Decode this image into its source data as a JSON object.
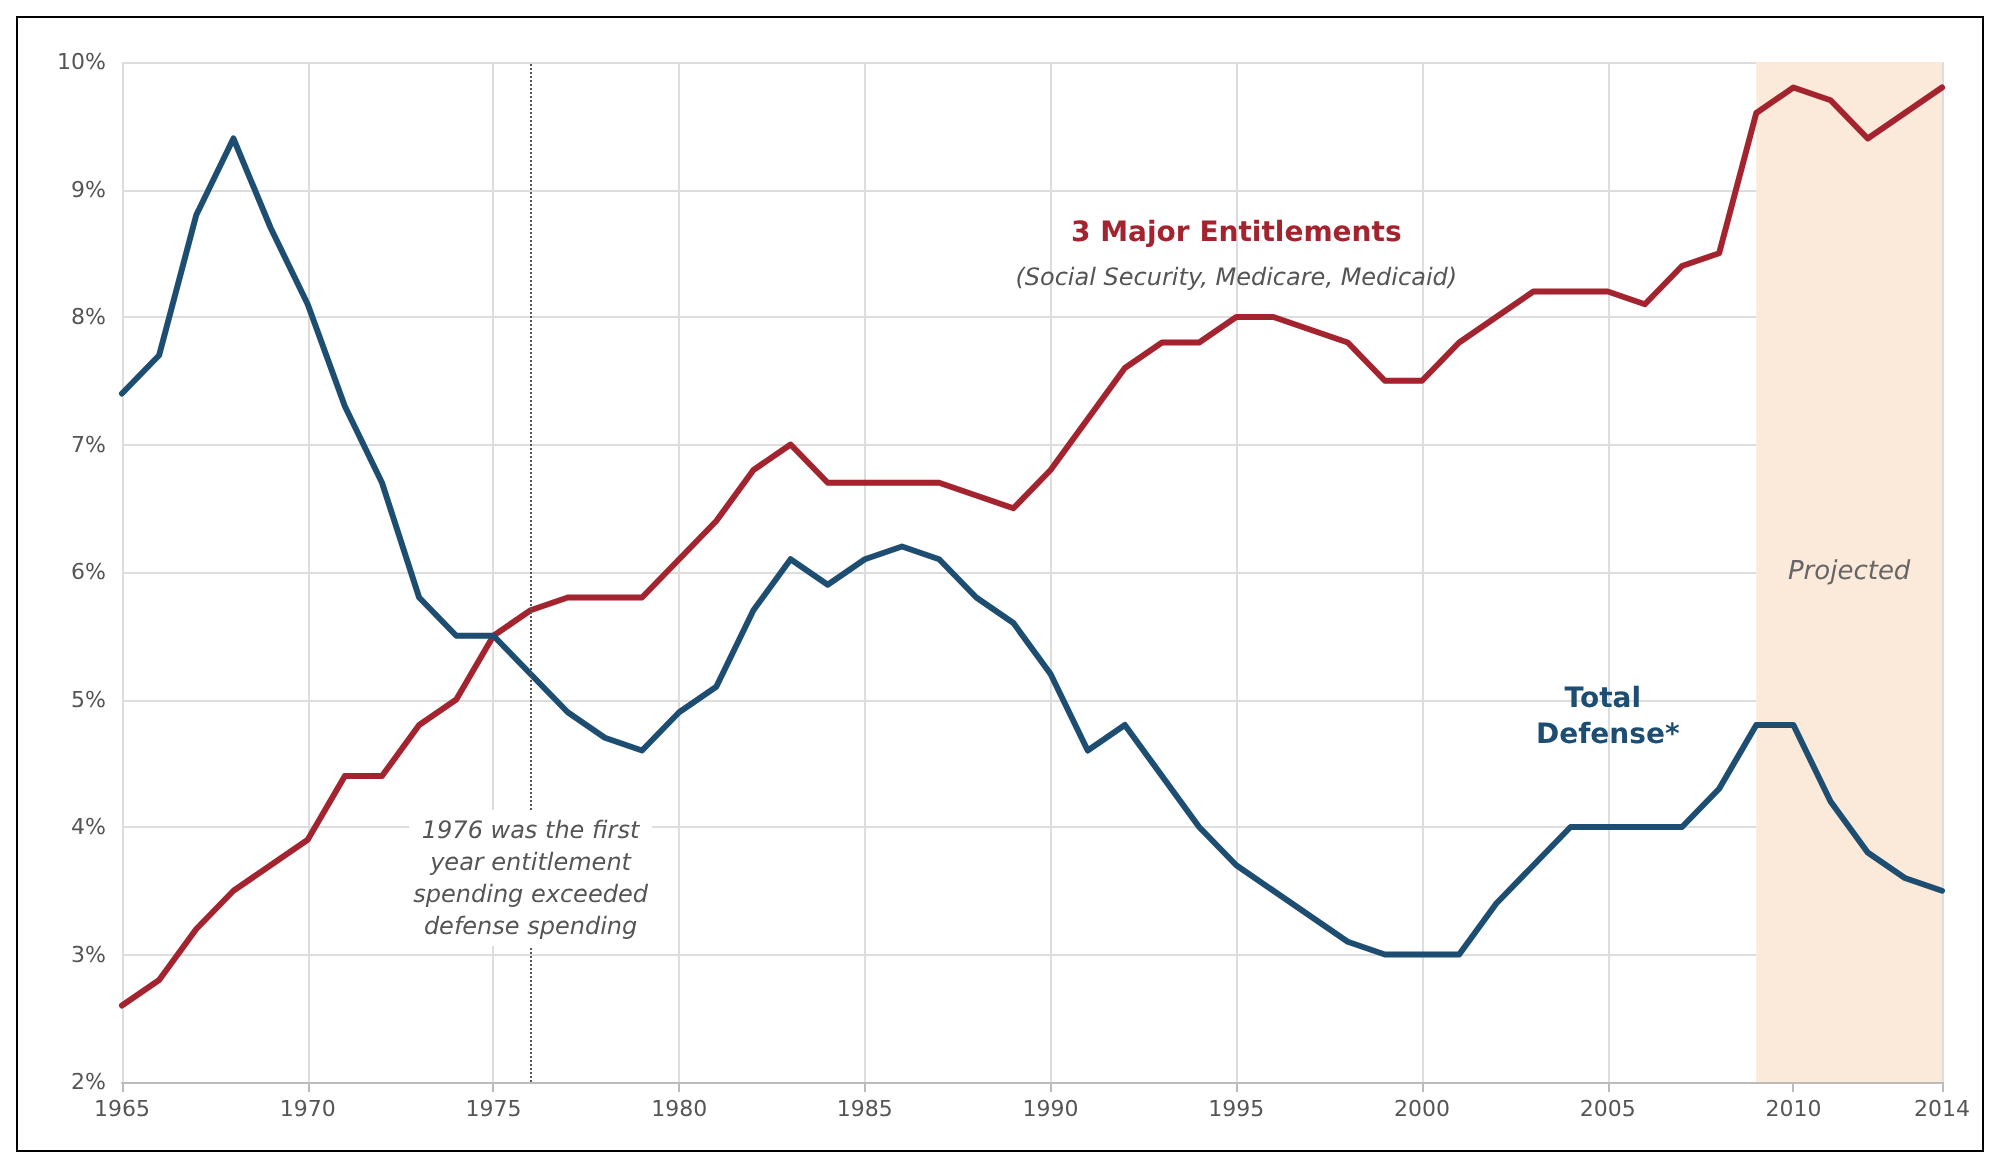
{
  "chart_data": {
    "type": "line",
    "x": [
      1965,
      1966,
      1967,
      1968,
      1969,
      1970,
      1971,
      1972,
      1973,
      1974,
      1975,
      1976,
      1977,
      1978,
      1979,
      1980,
      1981,
      1982,
      1983,
      1984,
      1985,
      1986,
      1987,
      1988,
      1989,
      1990,
      1991,
      1992,
      1993,
      1994,
      1995,
      1996,
      1997,
      1998,
      1999,
      2000,
      2001,
      2002,
      2003,
      2004,
      2005,
      2006,
      2007,
      2008,
      2009,
      2010,
      2011,
      2012,
      2013,
      2014
    ],
    "series": [
      {
        "name": "3 Major Entitlements",
        "color": "#a3242f",
        "values": [
          2.6,
          2.8,
          3.2,
          3.5,
          3.7,
          3.9,
          4.4,
          4.4,
          4.8,
          5.0,
          5.5,
          5.7,
          5.8,
          5.8,
          5.8,
          6.1,
          6.4,
          6.8,
          7.0,
          6.7,
          6.7,
          6.7,
          6.7,
          6.6,
          6.5,
          6.8,
          7.2,
          7.6,
          7.8,
          7.8,
          8.0,
          8.0,
          7.9,
          7.8,
          7.5,
          7.5,
          7.8,
          8.0,
          8.2,
          8.2,
          8.2,
          8.1,
          8.4,
          8.5,
          9.6,
          9.8,
          9.7,
          9.4,
          9.6,
          9.8
        ]
      },
      {
        "name": "Total Defense*",
        "color": "#1d4e72",
        "values": [
          7.4,
          7.7,
          8.8,
          9.4,
          8.7,
          8.1,
          7.3,
          6.7,
          5.8,
          5.5,
          5.5,
          5.2,
          4.9,
          4.7,
          4.6,
          4.9,
          5.1,
          5.7,
          6.1,
          5.9,
          6.1,
          6.2,
          6.1,
          5.8,
          5.6,
          5.2,
          4.6,
          4.8,
          4.4,
          4.0,
          3.7,
          3.5,
          3.3,
          3.1,
          3.0,
          3.0,
          3.0,
          3.4,
          3.7,
          4.0,
          4.0,
          4.0,
          4.0,
          4.3,
          4.8,
          4.8,
          4.2,
          3.8,
          3.6,
          3.5
        ]
      }
    ],
    "xlim": [
      1965,
      2014
    ],
    "xticks": [
      1965,
      1970,
      1975,
      1980,
      1985,
      1990,
      1995,
      2000,
      2005,
      2010,
      2014
    ],
    "ylim": [
      2,
      10
    ],
    "yticks": [
      {
        "value": 2,
        "label": "2%"
      },
      {
        "value": 3,
        "label": "3%"
      },
      {
        "value": 4,
        "label": "4%"
      },
      {
        "value": 5,
        "label": "5%"
      },
      {
        "value": 6,
        "label": "6%"
      },
      {
        "value": 7,
        "label": "7%"
      },
      {
        "value": 8,
        "label": "8%"
      },
      {
        "value": 9,
        "label": "9%"
      },
      {
        "value": 10,
        "label": "10%"
      }
    ],
    "grid": true,
    "legend": false,
    "marker": "none",
    "line_style": "solid",
    "bands": [
      {
        "axis": "x",
        "from": 2009,
        "to": 2014,
        "label": "Projected",
        "color": "#fbe9d9"
      }
    ],
    "ref_lines": [
      {
        "axis": "x",
        "value": 1976,
        "label": null,
        "line_style": "dotted",
        "color": "#555555"
      }
    ],
    "annotations": [
      "(Social Security, Medicare, Medicaid)",
      {
        "text": "1976 was the first\nyear entitlement\nspending exceeded\ndefense spending",
        "x": 1976,
        "y": 3.6
      }
    ]
  }
}
